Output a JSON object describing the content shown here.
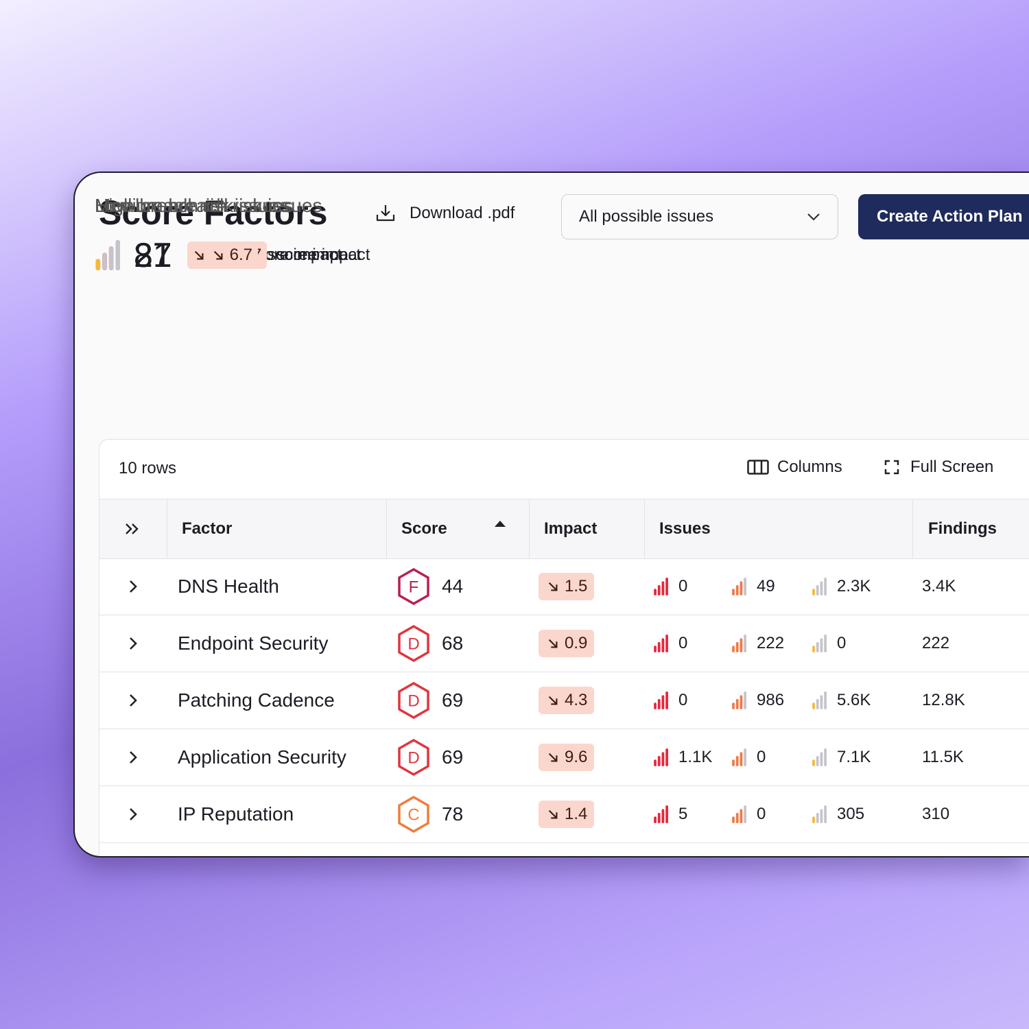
{
  "header": {
    "title": "Score Factors",
    "download": "Download .pdf",
    "filter": "All possible issues",
    "action": "Create Action Plan"
  },
  "summary": [
    {
      "label": "High breach risk issues",
      "count": "8",
      "impact": "9.2",
      "suffix": "score impact"
    },
    {
      "label": "Medium breach risk issues",
      "count": "27",
      "impact": "12.7",
      "suffix": "score impact"
    },
    {
      "label": "Low breach risk issues",
      "count": "31",
      "impact": "6.7",
      "suffix": "score impact"
    }
  ],
  "table": {
    "row_count": "10 rows",
    "columns_button": "Columns",
    "fullscreen_button": "Full Screen",
    "headers": [
      "Factor",
      "Score",
      "Impact",
      "Issues",
      "Findings"
    ],
    "rows": [
      {
        "factor": "DNS Health",
        "grade": "F",
        "grade_color": "#b8204f",
        "score": "44",
        "impact": "1.5",
        "issues": [
          "0",
          "49",
          "2.3K"
        ],
        "findings": "3.4K"
      },
      {
        "factor": "Endpoint Security",
        "grade": "D",
        "grade_color": "#e0353f",
        "score": "68",
        "impact": "0.9",
        "issues": [
          "0",
          "222",
          "0"
        ],
        "findings": "222"
      },
      {
        "factor": "Patching Cadence",
        "grade": "D",
        "grade_color": "#e0353f",
        "score": "69",
        "impact": "4.3",
        "issues": [
          "0",
          "986",
          "5.6K"
        ],
        "findings": "12.8K"
      },
      {
        "factor": "Application Security",
        "grade": "D",
        "grade_color": "#e0353f",
        "score": "69",
        "impact": "9.6",
        "issues": [
          "1.1K",
          "0",
          "7.1K"
        ],
        "findings": "11.5K"
      },
      {
        "factor": "IP Reputation",
        "grade": "C",
        "grade_color": "#ef7d3c",
        "score": "78",
        "impact": "1.4",
        "issues": [
          "5",
          "0",
          "305"
        ],
        "findings": "310"
      }
    ]
  }
}
